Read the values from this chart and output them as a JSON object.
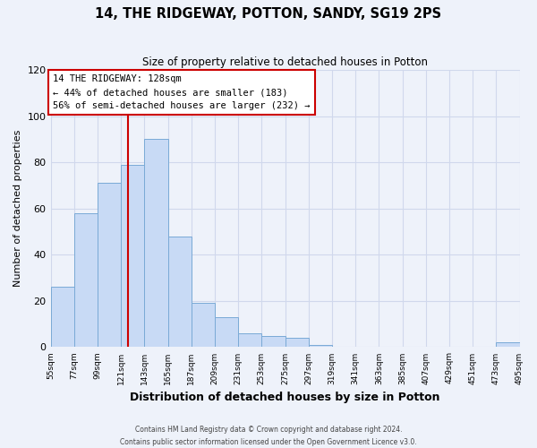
{
  "title": "14, THE RIDGEWAY, POTTON, SANDY, SG19 2PS",
  "subtitle": "Size of property relative to detached houses in Potton",
  "xlabel": "Distribution of detached houses by size in Potton",
  "ylabel": "Number of detached properties",
  "bin_edges": [
    55,
    77,
    99,
    121,
    143,
    165,
    187,
    209,
    231,
    253,
    275,
    297,
    319,
    341,
    363,
    385,
    407,
    429,
    451,
    473,
    495
  ],
  "bin_labels": [
    "55sqm",
    "77sqm",
    "99sqm",
    "121sqm",
    "143sqm",
    "165sqm",
    "187sqm",
    "209sqm",
    "231sqm",
    "253sqm",
    "275sqm",
    "297sqm",
    "319sqm",
    "341sqm",
    "363sqm",
    "385sqm",
    "407sqm",
    "429sqm",
    "451sqm",
    "473sqm",
    "495sqm"
  ],
  "counts": [
    26,
    58,
    71,
    79,
    90,
    48,
    19,
    13,
    6,
    5,
    4,
    1,
    0,
    0,
    0,
    0,
    0,
    0,
    0,
    2
  ],
  "bar_color": "#c8daf5",
  "bar_edge_color": "#7aaad6",
  "grid_color": "#d0d8ec",
  "vline_x": 128,
  "vline_color": "#cc0000",
  "annotation_title": "14 THE RIDGEWAY: 128sqm",
  "annotation_line1": "← 44% of detached houses are smaller (183)",
  "annotation_line2": "56% of semi-detached houses are larger (232) →",
  "annotation_box_color": "#ffffff",
  "annotation_box_edge": "#cc0000",
  "ylim": [
    0,
    120
  ],
  "yticks": [
    0,
    20,
    40,
    60,
    80,
    100,
    120
  ],
  "footer1": "Contains HM Land Registry data © Crown copyright and database right 2024.",
  "footer2": "Contains public sector information licensed under the Open Government Licence v3.0.",
  "bg_color": "#eef2fa"
}
